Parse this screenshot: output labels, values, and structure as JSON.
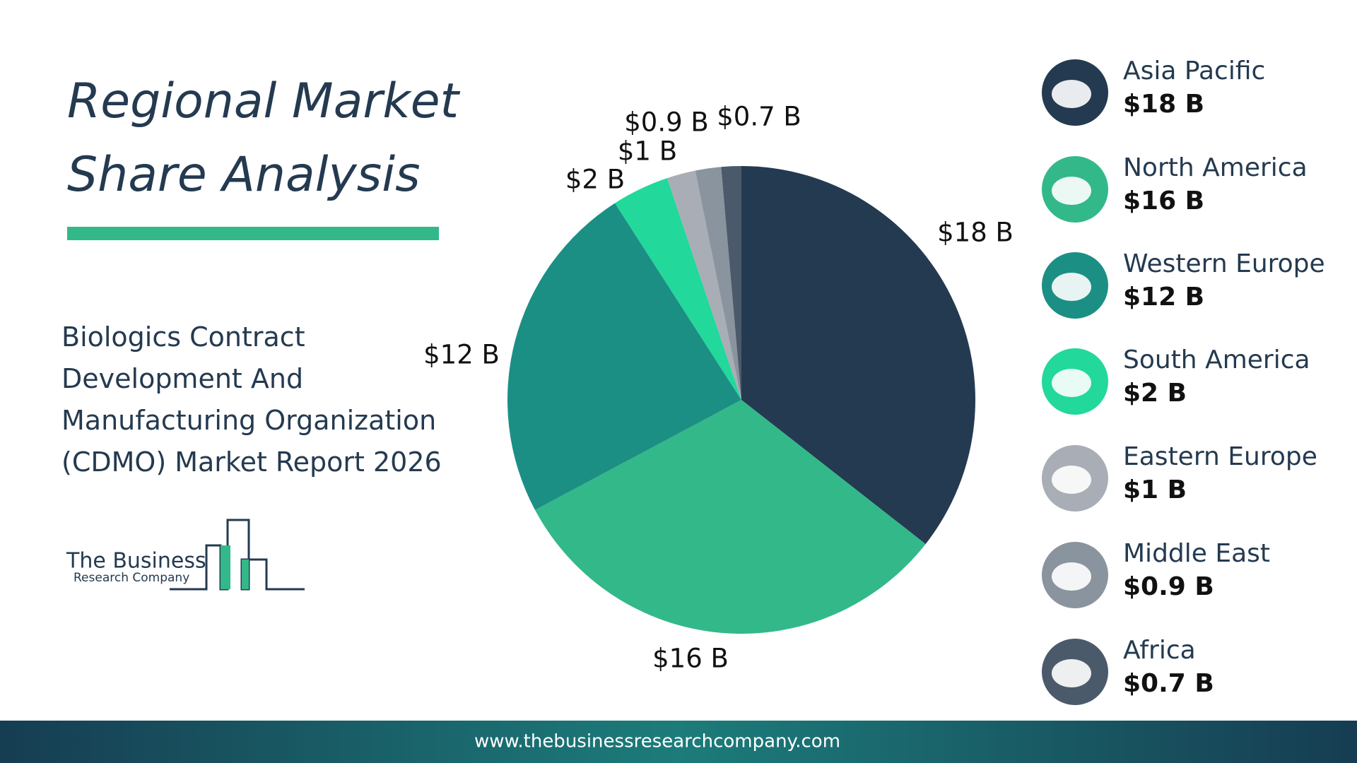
{
  "chart_data": {
    "type": "pie",
    "title": "Regional Market Share Analysis",
    "subtitle": "Biologics Contract Development And Manufacturing Organization (CDMO) Market Report 2026",
    "categories": [
      "Asia Pacific",
      "North America",
      "Western Europe",
      "South America",
      "Eastern Europe",
      "Middle East",
      "Africa"
    ],
    "values": [
      18,
      16,
      12,
      2,
      1,
      0.9,
      0.7
    ],
    "value_labels": [
      "$18 B",
      "$16 B",
      "$12 B",
      "$2 B",
      "$1 B",
      "$0.9 B",
      "$0.7 B"
    ],
    "colors": [
      "#243a50",
      "#33b88a",
      "#1c8f85",
      "#22d89b",
      "#a9adb6",
      "#8a949e",
      "#4b5a6b"
    ]
  },
  "logo": {
    "line1": "The Business",
    "line2": "Research Company"
  },
  "footer": {
    "url": "www.thebusinessresearchcompany.com"
  }
}
